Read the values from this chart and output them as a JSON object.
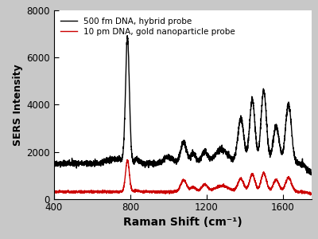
{
  "xlabel": "Raman Shift (cm⁻¹)",
  "ylabel": "SERS Intensity",
  "xlim": [
    400,
    1750
  ],
  "ylim": [
    0,
    8000
  ],
  "yticks": [
    0,
    2000,
    4000,
    6000,
    8000
  ],
  "xticks": [
    400,
    800,
    1200,
    1600
  ],
  "legend1": "500 fm DNA, hybrid probe",
  "legend2": "10 pm DNA, gold nanoparticle probe",
  "black_color": "#000000",
  "red_color": "#cc0000",
  "outer_bg": "#c8c8c8",
  "plot_bg": "#ffffff",
  "linewidth": 1.0
}
